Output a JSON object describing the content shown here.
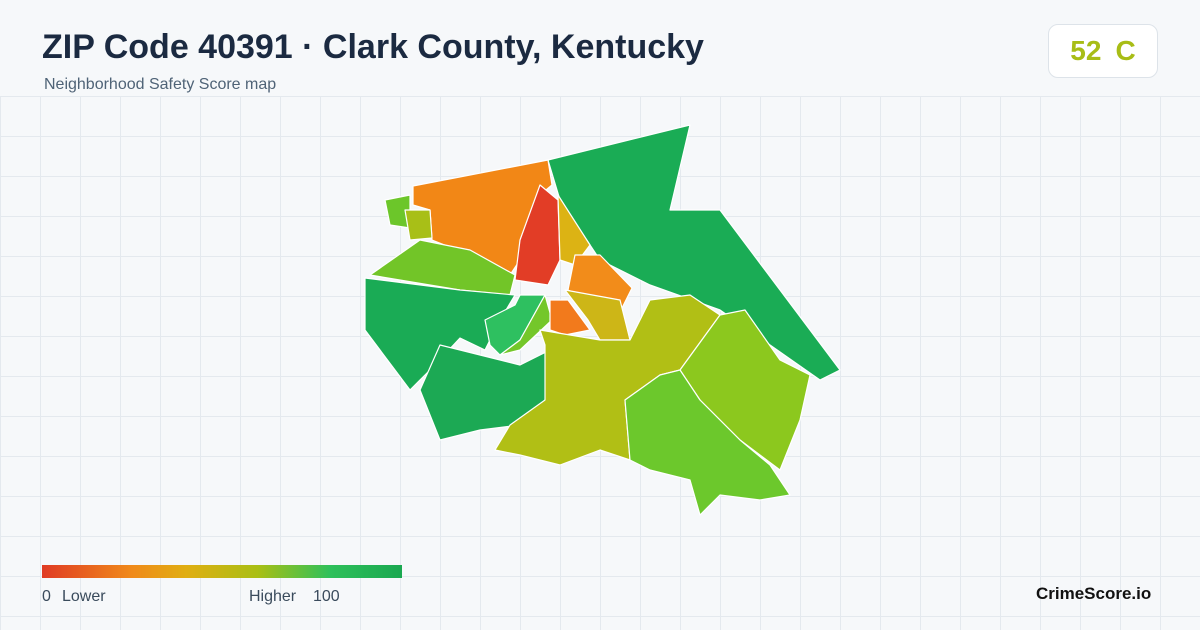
{
  "header": {
    "title": "ZIP Code 40391 · Clark County, Kentucky",
    "subtitle": "Neighborhood Safety Score map"
  },
  "score": {
    "value": 52,
    "grade": "C"
  },
  "legend": {
    "min": 0,
    "min_label": "Lower",
    "max_label": "Higher",
    "max": 100
  },
  "brand": "CrimeScore.io"
}
